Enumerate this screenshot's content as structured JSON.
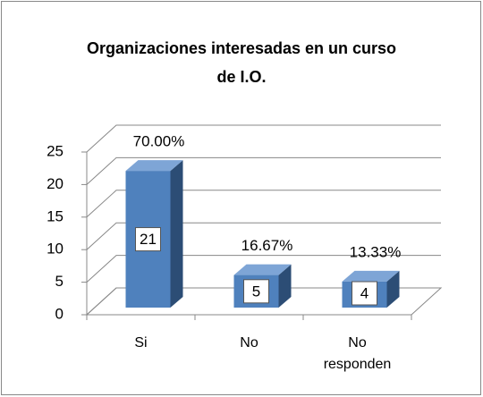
{
  "chart_data": {
    "type": "bar3d",
    "title": "Organizaciones interesadas en un curso de I.O.",
    "categories": [
      "Si",
      "No",
      "No responden"
    ],
    "values": [
      21,
      5,
      4
    ],
    "annotations": [
      "70.00%",
      "16.67%",
      "13.33%"
    ],
    "color": "#4f81bd",
    "ylim": [
      0,
      25
    ],
    "yticks": [
      0,
      5,
      10,
      15,
      20,
      25
    ],
    "grid": true
  }
}
